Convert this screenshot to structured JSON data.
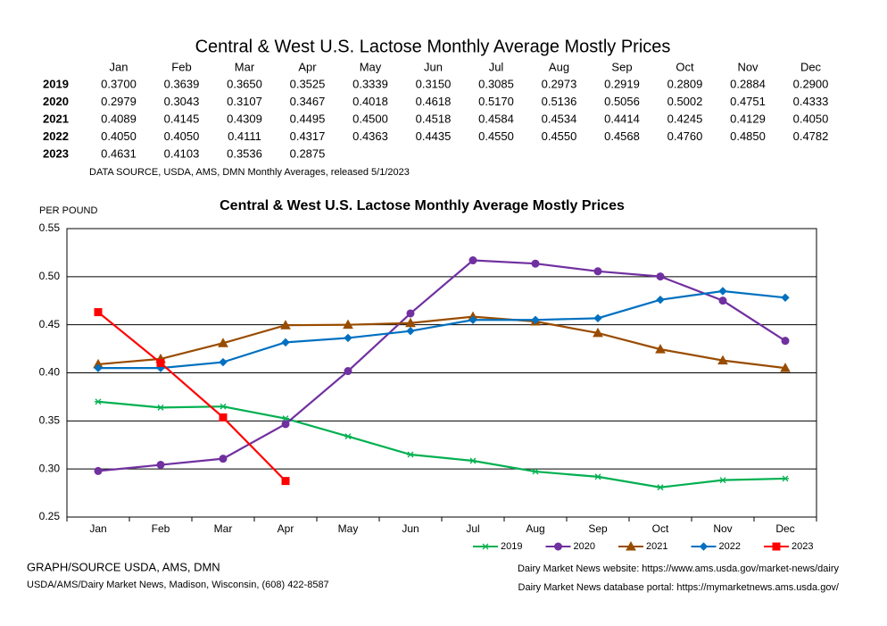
{
  "header": {
    "title": "Central & West U.S. Lactose Monthly Average Mostly Prices",
    "source": "DATA SOURCE, USDA, AMS, DMN Monthly Averages, released 5/1/2023"
  },
  "footer": {
    "left": [
      "GRAPH/SOURCE USDA, AMS, DMN",
      "USDA/AMS/Dairy Market News, Madison, Wisconsin, (608) 422-8587"
    ],
    "right": [
      "Dairy Market News website:  https://www.ams.usda.gov/market-news/dairy",
      "Dairy Market News database portal:  https://mymarketnews.ams.usda.gov/"
    ]
  },
  "chart_data": {
    "type": "line",
    "title": "Central & West U.S. Lactose Monthly Average Mostly Prices",
    "y_label": "PER POUND",
    "categories": [
      "Jan",
      "Feb",
      "Mar",
      "Apr",
      "May",
      "Jun",
      "Jul",
      "Aug",
      "Sep",
      "Oct",
      "Nov",
      "Dec"
    ],
    "ylim": [
      0.25,
      0.55
    ],
    "yticks": [
      0.25,
      {
        "value": 0.3,
        "label": "0.30"
      },
      0.35,
      {
        "value": 0.4,
        "label": "0.40"
      },
      0.45,
      {
        "value": 0.5,
        "label": "0.50"
      },
      0.55
    ],
    "grid": true,
    "legend": "bottom-right",
    "series": [
      {
        "name": "2019",
        "color": "#00b050",
        "marker": "star",
        "values": [
          0.37,
          0.3639,
          0.365,
          0.3525,
          0.3339,
          0.315,
          0.3085,
          0.2973,
          0.2919,
          0.2809,
          0.2884,
          0.29
        ],
        "value_labels": [
          "0.3700",
          "0.3639",
          "0.3650",
          "0.3525",
          "0.3339",
          "0.3150",
          "0.3085",
          "0.2973",
          "0.2919",
          "0.2809",
          "0.2884",
          "0.2900"
        ]
      },
      {
        "name": "2020",
        "color": "#7030a0",
        "marker": "circle",
        "values": [
          0.2979,
          0.3043,
          0.3107,
          0.3467,
          0.4018,
          0.4618,
          0.517,
          0.5136,
          0.5056,
          0.5002,
          0.4751,
          0.4333
        ],
        "value_labels": [
          "0.2979",
          "0.3043",
          "0.3107",
          "0.3467",
          "0.4018",
          "0.4618",
          "0.5170",
          "0.5136",
          "0.5056",
          "0.5002",
          "0.4751",
          "0.4333"
        ]
      },
      {
        "name": "2021",
        "color": "#994c00",
        "marker": "triangle",
        "values": [
          0.4089,
          0.4145,
          0.4309,
          0.4495,
          0.45,
          0.4518,
          0.4584,
          0.4534,
          0.4414,
          0.4245,
          0.4129,
          0.405
        ],
        "value_labels": [
          "0.4089",
          "0.4145",
          "0.4309",
          "0.4495",
          "0.4500",
          "0.4518",
          "0.4584",
          "0.4534",
          "0.4414",
          "0.4245",
          "0.4129",
          "0.4050"
        ]
      },
      {
        "name": "2022",
        "color": "#0070c0",
        "marker": "diamond",
        "values": [
          0.405,
          0.405,
          0.4111,
          0.4317,
          0.4363,
          0.4435,
          0.455,
          0.455,
          0.4568,
          0.476,
          0.485,
          0.4782
        ],
        "value_labels": [
          "0.4050",
          "0.4050",
          "0.4111",
          "0.4317",
          "0.4363",
          "0.4435",
          "0.4550",
          "0.4550",
          "0.4568",
          "0.4760",
          "0.4850",
          "0.4782"
        ]
      },
      {
        "name": "2023",
        "color": "#ff0000",
        "marker": "square",
        "values": [
          0.4631,
          0.4103,
          0.3536,
          0.2875,
          null,
          null,
          null,
          null,
          null,
          null,
          null,
          null
        ],
        "value_labels": [
          "0.4631",
          "0.4103",
          "0.3536",
          "0.2875",
          null,
          null,
          null,
          null,
          null,
          null,
          null,
          null
        ]
      }
    ]
  }
}
